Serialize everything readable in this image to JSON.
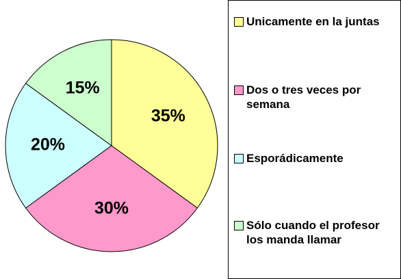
{
  "chart_data": {
    "type": "pie",
    "categories": [
      "Unicamente en la juntas",
      "Dos o tres veces por semana",
      "Esporádicamente",
      "Sólo cuando el profesor los manda llamar"
    ],
    "values": [
      35,
      30,
      20,
      15
    ],
    "value_labels": [
      "35%",
      "30%",
      "20%",
      "15%"
    ],
    "colors": [
      "#ffff99",
      "#ff99cc",
      "#ccffff",
      "#ccffcc"
    ]
  }
}
